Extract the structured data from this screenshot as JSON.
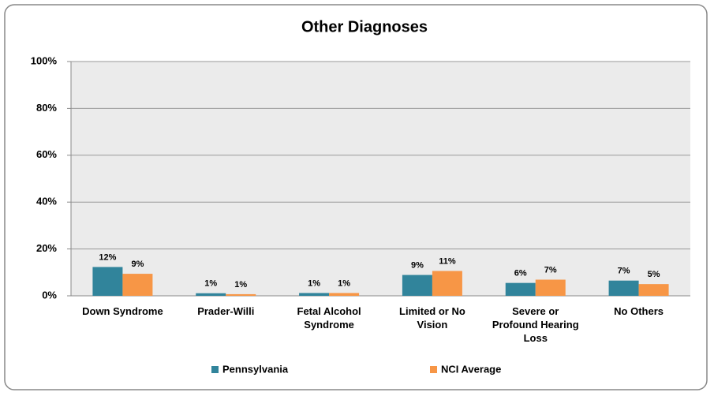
{
  "chart_data": {
    "type": "bar",
    "title": "Other Diagnoses",
    "categories": [
      "Down Syndrome",
      "Prader-Willi",
      "Fetal Alcohol Syndrome",
      "Limited or No Vision",
      "Severe or Profound Hearing Loss",
      "No Others"
    ],
    "series": [
      {
        "name": "Pennsylvania",
        "color": "#31849b",
        "values": [
          12.3,
          1.1,
          1.2,
          8.9,
          5.5,
          6.5
        ],
        "value_labels": [
          "12%",
          "1%",
          "1%",
          "9%",
          "6%",
          "7%"
        ]
      },
      {
        "name": "NCI Average",
        "color": "#f79646",
        "values": [
          9.4,
          0.7,
          1.2,
          10.6,
          6.9,
          5.0
        ],
        "value_labels": [
          "9%",
          "1%",
          "1%",
          "11%",
          "7%",
          "5%"
        ]
      }
    ],
    "ylim": [
      0,
      100
    ],
    "yticks": [
      {
        "value": 0,
        "label": "0%"
      },
      {
        "value": 20,
        "label": "20%"
      },
      {
        "value": 40,
        "label": "40%"
      },
      {
        "value": 60,
        "label": "60%"
      },
      {
        "value": 80,
        "label": "80%"
      },
      {
        "value": 100,
        "label": "100%"
      }
    ],
    "grid": true,
    "legend": "bottom"
  }
}
